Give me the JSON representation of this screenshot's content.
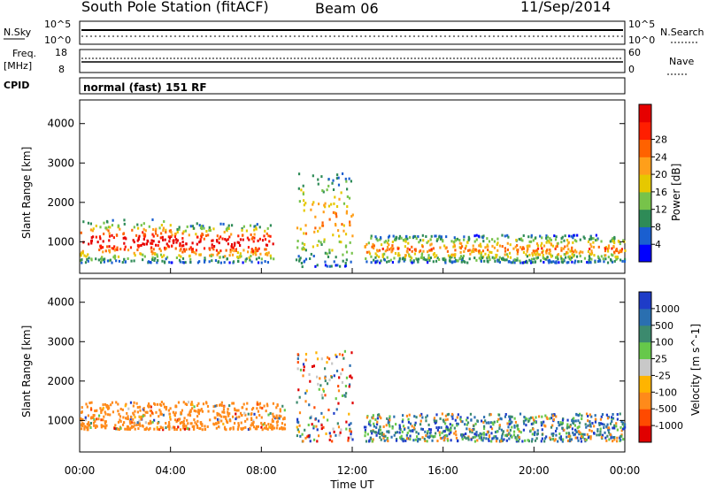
{
  "header": {
    "title": "South Pole Station (fitACF)",
    "beam": "Beam 06",
    "date": "11/Sep/2014"
  },
  "top_panel": {
    "left_label": "N.Sky",
    "left_ticks": [
      "10^5",
      "10^0"
    ],
    "right_ticks": [
      "10^5",
      "10^0"
    ],
    "right_label": "N.Search"
  },
  "freq_panel": {
    "left_label": "Freq.",
    "left_unit": "[MHz]",
    "left_ticks": [
      "18",
      "8"
    ],
    "right_ticks": [
      "60",
      "0"
    ],
    "right_label": "Nave"
  },
  "cpid": {
    "label": "CPID",
    "text": "normal (fast) 151 RF"
  },
  "chart_data": [
    {
      "type": "heatmap",
      "name_label": "Power",
      "ylabel": "Slant Range [km]",
      "xlabel": "",
      "x_ticks": [
        "00:00",
        "04:00",
        "08:00",
        "12:00",
        "16:00",
        "20:00",
        "00:00"
      ],
      "y_ticks": [
        1000,
        2000,
        3000,
        4000
      ],
      "ylim": [
        200,
        4600
      ],
      "xlim_hours": [
        0,
        24
      ],
      "colorbar": {
        "label": "Power [dB]",
        "ticks": [
          "4",
          "8",
          "12",
          "16",
          "20",
          "24",
          "28"
        ],
        "colors": [
          "#0000ff",
          "#1a5fd0",
          "#2e8b57",
          "#77c34a",
          "#e6c800",
          "#ff9f1a",
          "#ff6200",
          "#ff1e00",
          "#e60000"
        ]
      },
      "scatter_bands": [
        {
          "t": [
            0,
            4
          ],
          "r": [
            500,
            1600
          ],
          "value": "high"
        },
        {
          "t": [
            4,
            8.5
          ],
          "r": [
            500,
            1500
          ],
          "value": "high"
        },
        {
          "t": [
            9.5,
            12
          ],
          "r": [
            400,
            2800
          ],
          "value": "medium"
        },
        {
          "t": [
            12.5,
            24
          ],
          "r": [
            500,
            1200
          ],
          "value": "medium"
        }
      ]
    },
    {
      "type": "heatmap",
      "name_label": "Velocity",
      "ylabel": "Slant Range [km]",
      "xlabel": "Time UT",
      "x_ticks": [
        "00:00",
        "04:00",
        "08:00",
        "12:00",
        "16:00",
        "20:00",
        "00:00"
      ],
      "y_ticks": [
        1000,
        2000,
        3000,
        4000
      ],
      "ylim": [
        200,
        4600
      ],
      "xlim_hours": [
        0,
        24
      ],
      "colorbar": {
        "label": "Velocity [m s^-1]",
        "ticks": [
          "1000",
          "500",
          "100",
          "25",
          "-25",
          "-100",
          "-500",
          "-1000"
        ],
        "colors": [
          "#1e3cc8",
          "#2a6fb0",
          "#3c8a6e",
          "#66c84a",
          "#c8c8c8",
          "#ffb400",
          "#ff8a1a",
          "#ff4a00",
          "#e00000"
        ]
      },
      "scatter_bands": [
        {
          "t": [
            0,
            9
          ],
          "r": [
            800,
            1500
          ],
          "value": "orange"
        },
        {
          "t": [
            9.5,
            12
          ],
          "r": [
            500,
            2800
          ],
          "value": "mixed"
        },
        {
          "t": [
            12.5,
            24
          ],
          "r": [
            500,
            1200
          ],
          "value": "green-blue"
        }
      ]
    }
  ],
  "xaxis": {
    "label": "Time UT"
  }
}
